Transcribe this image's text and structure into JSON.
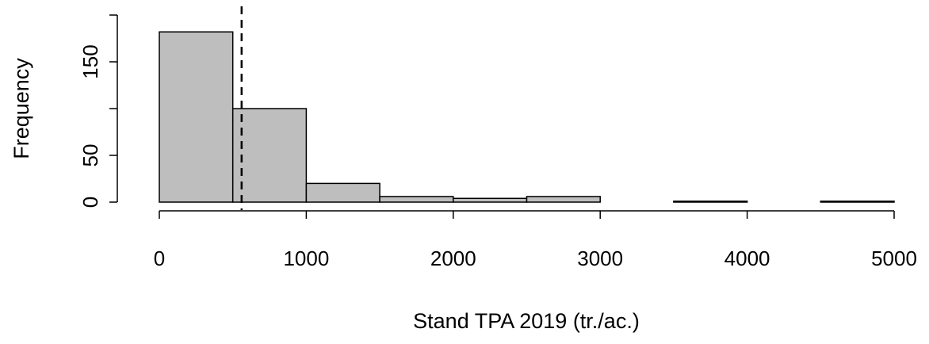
{
  "chart_data": {
    "type": "histogram",
    "title": "",
    "xlabel": "Stand TPA 2019 (tr./ac.)",
    "ylabel": "Frequency",
    "xlim": [
      0,
      5000
    ],
    "ylim": [
      0,
      200
    ],
    "x_ticks": [
      0,
      1000,
      2000,
      3000,
      4000,
      5000
    ],
    "y_ticks": [
      0,
      50,
      150
    ],
    "bin_width": 500,
    "bins": [
      {
        "start": 0,
        "end": 500,
        "count": 182
      },
      {
        "start": 500,
        "end": 1000,
        "count": 100
      },
      {
        "start": 1000,
        "end": 1500,
        "count": 20
      },
      {
        "start": 1500,
        "end": 2000,
        "count": 6
      },
      {
        "start": 2000,
        "end": 2500,
        "count": 4
      },
      {
        "start": 2500,
        "end": 3000,
        "count": 6
      },
      {
        "start": 3000,
        "end": 3500,
        "count": 0
      },
      {
        "start": 3500,
        "end": 4000,
        "count": 1
      },
      {
        "start": 4000,
        "end": 4500,
        "count": 0
      },
      {
        "start": 4500,
        "end": 5000,
        "count": 1
      }
    ],
    "reference_line": {
      "x": 560,
      "style": "dashed"
    },
    "grid": false,
    "colors": {
      "bar_fill": "#bebebe",
      "bar_stroke": "#000000",
      "axis": "#000000",
      "reference_line": "#000000"
    }
  }
}
